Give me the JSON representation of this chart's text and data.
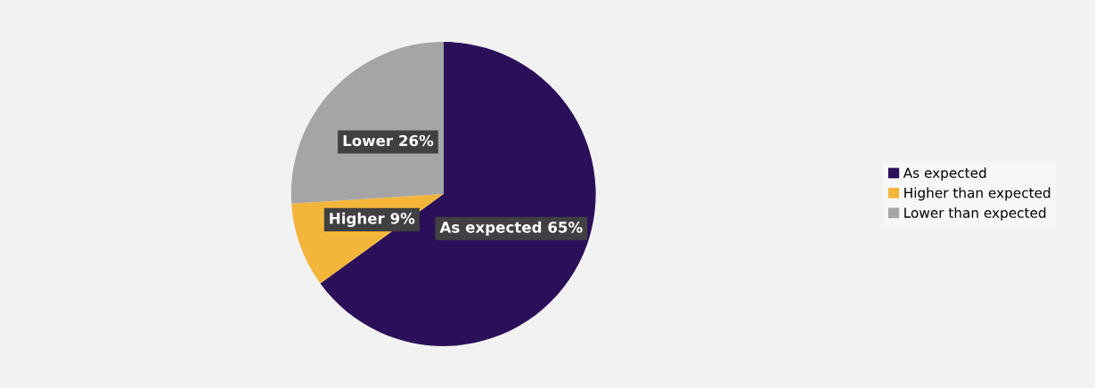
{
  "chart_data": {
    "type": "pie",
    "categories": [
      "As expected",
      "Higher than expected",
      "Lower than expected"
    ],
    "values": [
      65,
      9,
      26
    ],
    "colors": [
      "#2b1059",
      "#f4b63a",
      "#a5a5a5"
    ],
    "value_labels": [
      "As expected 65%",
      "Higher 9%",
      "Lower 26%"
    ],
    "legend": "right"
  }
}
